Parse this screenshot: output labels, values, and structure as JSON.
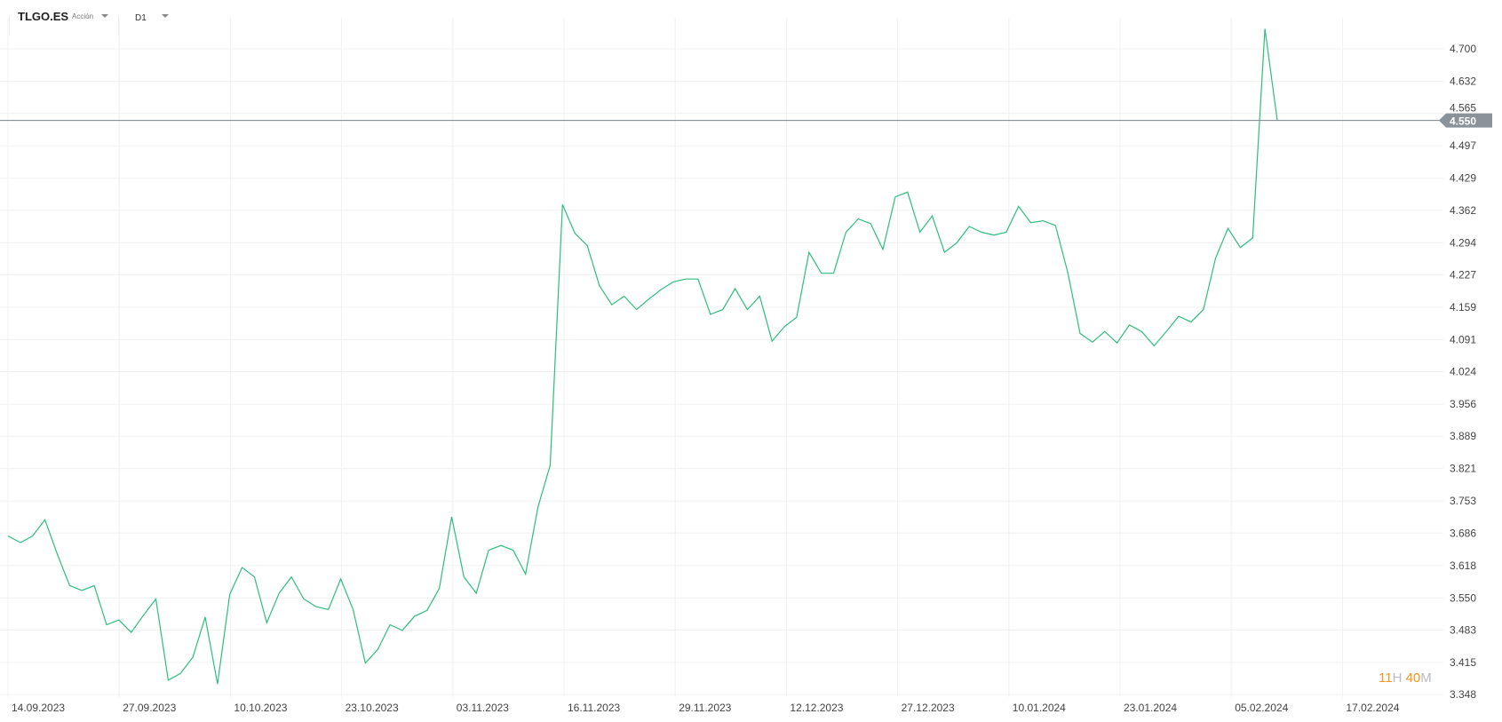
{
  "header": {
    "symbol": "TLGO.ES",
    "instrument_type": "Acción",
    "timeframe": "D1"
  },
  "timer": {
    "hours": "11",
    "h_unit": "H",
    "minutes": "40",
    "m_unit": "M"
  },
  "colors": {
    "line": "#2dbd7e",
    "price_line": "#7a858c",
    "price_label_bg": "#8a9399",
    "timer_accent": "#f7931e"
  },
  "chart_data": {
    "type": "line",
    "title": "",
    "xlabel": "",
    "ylabel": "",
    "ylim": [
      3.348,
      4.742
    ],
    "grid": true,
    "x_tick_labels": [
      "14.09.2023",
      "27.09.2023",
      "10.10.2023",
      "23.10.2023",
      "03.11.2023",
      "16.11.2023",
      "29.11.2023",
      "12.12.2023",
      "27.12.2023",
      "10.01.2024",
      "23.01.2024",
      "05.02.2024",
      "17.02.2024"
    ],
    "y_tick_labels": [
      "4.700",
      "4.632",
      "4.565",
      "4.497",
      "4.429",
      "4.362",
      "4.294",
      "4.227",
      "4.159",
      "4.091",
      "4.024",
      "3.956",
      "3.889",
      "3.821",
      "3.753",
      "3.686",
      "3.618",
      "3.550",
      "3.483",
      "3.415",
      "3.348"
    ],
    "current_price": 4.55,
    "current_price_label": "4.550",
    "values": [
      3.68,
      3.666,
      3.68,
      3.714,
      3.642,
      3.576,
      3.566,
      3.576,
      3.494,
      3.504,
      3.478,
      3.514,
      3.548,
      3.378,
      3.392,
      3.426,
      3.51,
      3.37,
      3.558,
      3.614,
      3.594,
      3.498,
      3.56,
      3.594,
      3.548,
      3.532,
      3.526,
      3.59,
      3.526,
      3.414,
      3.442,
      3.494,
      3.482,
      3.512,
      3.524,
      3.57,
      3.72,
      3.594,
      3.56,
      3.65,
      3.66,
      3.65,
      3.6,
      3.74,
      3.828,
      4.374,
      4.314,
      4.288,
      4.204,
      4.164,
      4.182,
      4.154,
      4.176,
      4.196,
      4.212,
      4.218,
      4.218,
      4.144,
      4.154,
      4.198,
      4.154,
      4.182,
      4.088,
      4.118,
      4.138,
      4.274,
      4.23,
      4.23,
      4.316,
      4.344,
      4.334,
      4.28,
      4.39,
      4.4,
      4.316,
      4.35,
      4.274,
      4.294,
      4.328,
      4.316,
      4.31,
      4.316,
      4.37,
      4.336,
      4.34,
      4.33,
      4.232,
      4.104,
      4.086,
      4.108,
      4.084,
      4.122,
      4.108,
      4.078,
      4.108,
      4.14,
      4.128,
      4.154,
      4.262,
      4.324,
      4.284,
      4.304,
      4.742,
      4.55
    ]
  }
}
